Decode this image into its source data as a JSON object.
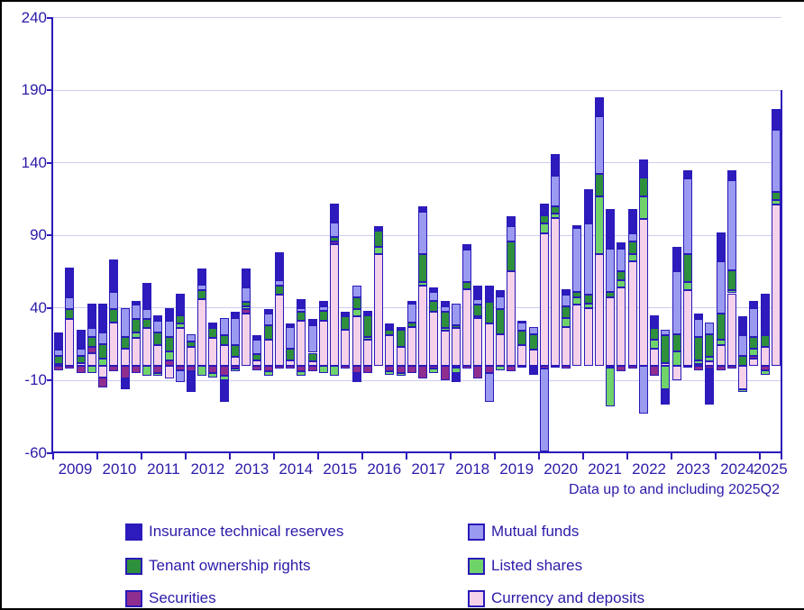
{
  "note": "Data up to and including 2025Q2",
  "colors": {
    "ink": "#2a1ba9",
    "axis": "#2a1ab9",
    "grid": "#ccccf0",
    "frame": "#000000"
  },
  "chart_data": {
    "type": "bar",
    "stacked": true,
    "title": "",
    "xlabel": "",
    "ylabel": "",
    "ylim": [
      -60,
      240
    ],
    "yticks": [
      240,
      190,
      140,
      90,
      40,
      -10,
      -60
    ],
    "grid": "horizontal",
    "legend_position": "bottom",
    "years": [
      "2009",
      "2010",
      "2011",
      "2012",
      "2013",
      "2014",
      "2015",
      "2016",
      "2017",
      "2018",
      "2019",
      "2020",
      "2021",
      "2022",
      "2023",
      "2024",
      "2025"
    ],
    "x_unit": "quarter",
    "quarters_last_year": 2,
    "stack_order_bottom_up": [
      5,
      4,
      3,
      2,
      1,
      0
    ],
    "series": [
      {
        "name": "Insurance technical reserves",
        "color": "#2d1bbd",
        "values": [
          12,
          21,
          13,
          17,
          20,
          22,
          -7,
          3,
          18,
          4,
          9,
          15,
          -14,
          11,
          4,
          -15,
          4,
          13,
          3,
          3,
          19,
          2,
          6,
          4,
          4,
          13,
          3,
          -6,
          3,
          3,
          3,
          2,
          2,
          4,
          3,
          4,
          -6,
          4,
          9,
          11,
          4,
          7,
          1,
          -6,
          8,
          15,
          4,
          2,
          24,
          13,
          27,
          4,
          17,
          12,
          9,
          -11,
          17,
          6,
          4,
          -25,
          20,
          7,
          13,
          5,
          29,
          14
        ]
      },
      {
        "name": "Mutual funds",
        "color": "#9a9af0",
        "values": [
          4,
          8,
          5,
          6,
          8,
          12,
          20,
          10,
          7,
          8,
          11,
          -8,
          5,
          4,
          0,
          12,
          19,
          10,
          10,
          8,
          4,
          15,
          3,
          19,
          3,
          10,
          0,
          8,
          0,
          0,
          1,
          0,
          13,
          29,
          6,
          4,
          15,
          22,
          4,
          -20,
          9,
          10,
          6,
          5,
          -57,
          21,
          8,
          44,
          49,
          40,
          30,
          16,
          5,
          -33,
          0,
          4,
          43,
          52,
          12,
          8,
          36,
          62,
          14,
          20,
          0,
          43
        ]
      },
      {
        "name": "Tenant ownership rights",
        "color": "#2e8f3c",
        "values": [
          6,
          7,
          5,
          7,
          10,
          9,
          8,
          9,
          6,
          9,
          10,
          6,
          4,
          6,
          7,
          7,
          8,
          3,
          4,
          10,
          6,
          8,
          6,
          6,
          7,
          3,
          9,
          8,
          15,
          11,
          4,
          12,
          3,
          19,
          8,
          11,
          2,
          5,
          8,
          15,
          17,
          21,
          10,
          11,
          6,
          5,
          8,
          4,
          6,
          15,
          4,
          6,
          9,
          13,
          8,
          19,
          12,
          19,
          16,
          16,
          18,
          14,
          7,
          8,
          8,
          6
        ]
      },
      {
        "name": "Listed shares",
        "color": "#6fd36a",
        "values": [
          0,
          0,
          0,
          -5,
          5,
          0,
          0,
          4,
          -7,
          -2,
          6,
          3,
          0,
          -7,
          -3,
          -3,
          -2,
          2,
          0,
          -3,
          0,
          0,
          -3,
          0,
          -5,
          -7,
          0,
          5,
          2,
          5,
          -2,
          -2,
          0,
          3,
          -3,
          2,
          -4,
          0,
          1,
          0,
          -3,
          0,
          0,
          0,
          7,
          3,
          6,
          5,
          3,
          40,
          -27,
          5,
          5,
          16,
          6,
          -16,
          10,
          6,
          3,
          3,
          4,
          2,
          -2,
          5,
          -3,
          3
        ]
      },
      {
        "name": "Securities",
        "color": "#8f2e8f",
        "values": [
          -3,
          -2,
          -5,
          4,
          -7,
          -4,
          -9,
          -5,
          0,
          -5,
          4,
          -3,
          -4,
          0,
          -5,
          -7,
          -2,
          3,
          -3,
          -4,
          -2,
          -2,
          -4,
          -4,
          0,
          2,
          -2,
          -5,
          -5,
          0,
          -4,
          -5,
          -5,
          -9,
          -2,
          -10,
          -1,
          -2,
          -9,
          -5,
          0,
          -4,
          -1,
          0,
          -2,
          -1,
          -2,
          0,
          0,
          0,
          -1,
          -4,
          -2,
          0,
          -7,
          0,
          0,
          -1,
          -3,
          -2,
          -3,
          -2,
          0,
          2,
          -3,
          0
        ]
      },
      {
        "name": "Currency and deposits",
        "color": "#f5d2ea",
        "values": [
          1,
          32,
          2,
          9,
          -8,
          30,
          12,
          19,
          26,
          14,
          -9,
          26,
          13,
          46,
          19,
          14,
          6,
          36,
          4,
          18,
          49,
          4,
          31,
          3,
          31,
          84,
          25,
          34,
          18,
          77,
          21,
          13,
          27,
          55,
          37,
          24,
          26,
          53,
          33,
          29,
          22,
          65,
          14,
          11,
          91,
          102,
          27,
          42,
          40,
          77,
          47,
          54,
          72,
          101,
          12,
          2,
          -10,
          52,
          1,
          3,
          14,
          50,
          -16,
          5,
          13,
          111
        ]
      }
    ]
  },
  "legend": {
    "items": [
      {
        "label": "Insurance technical reserves"
      },
      {
        "label": "Mutual funds"
      },
      {
        "label": "Tenant ownership rights"
      },
      {
        "label": "Listed shares"
      },
      {
        "label": "Securities"
      },
      {
        "label": "Currency and deposits"
      }
    ]
  }
}
